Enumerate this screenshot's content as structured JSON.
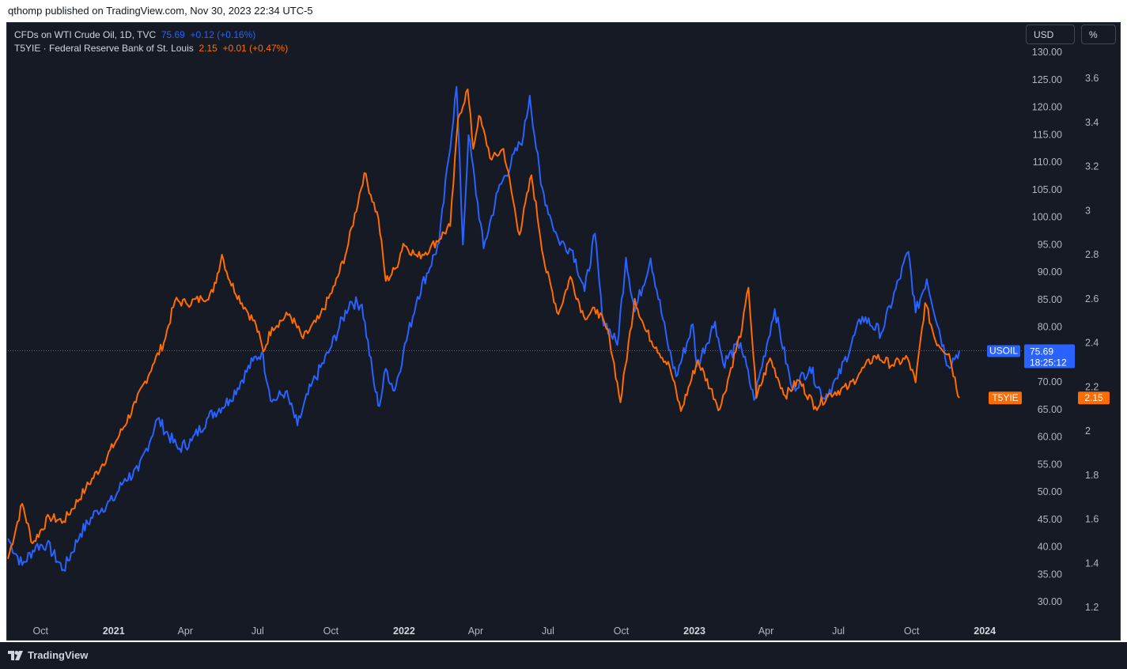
{
  "publisher_line": "qthomp published on TradingView.com, Nov 30, 2023 22:34 UTC-5",
  "brand": "TradingView",
  "buttons": {
    "currency": "USD",
    "percent": "%"
  },
  "legend": [
    {
      "name": "CFDs on WTI Crude Oil, 1D, TVC",
      "value": "75.69",
      "change": "+0.12 (+0.16%)"
    },
    {
      "name": "T5YIE · Federal Reserve Bank of St. Louis",
      "value": "2.15",
      "change": "+0.01 (+0.47%)"
    }
  ],
  "colors": {
    "usoil": "#2962ff",
    "t5yie": "#ff6d00",
    "background": "#161a25",
    "axis_text": "#b2b5be"
  },
  "chart_data": {
    "type": "line",
    "x_labels": [
      "Oct",
      "2021",
      "Apr",
      "Jul",
      "Oct",
      "2022",
      "Apr",
      "Jul",
      "Oct",
      "2023",
      "Apr",
      "Jul",
      "Oct",
      "2024"
    ],
    "x_label_bold": [
      false,
      true,
      false,
      false,
      false,
      true,
      false,
      false,
      false,
      true,
      false,
      false,
      false,
      true
    ],
    "left_axis": {
      "ticks": [
        "130.00",
        "125.00",
        "120.00",
        "115.00",
        "110.00",
        "105.00",
        "100.00",
        "95.00",
        "90.00",
        "85.00",
        "80.00",
        "70.00",
        "65.00",
        "60.00",
        "55.00",
        "50.00",
        "45.00",
        "40.00",
        "35.00",
        "30.00"
      ],
      "ylim": [
        27.5,
        131
      ],
      "unit": "USD"
    },
    "right_axis": {
      "ticks": [
        "3.6",
        "3.4",
        "3.2",
        "3",
        "2.8",
        "2.6",
        "2.4",
        "2.2",
        "2",
        "1.8",
        "1.6",
        "1.4",
        "1.2"
      ],
      "ylim": [
        1.17,
        3.67
      ],
      "unit": "%"
    },
    "series": [
      {
        "name": "USOIL",
        "axis": "left",
        "last_value": "75.69",
        "countdown": "18:25:12",
        "points": [
          [
            "2020-08-21",
            41.5
          ],
          [
            "2020-09-08",
            36.7
          ],
          [
            "2020-09-25",
            40.1
          ],
          [
            "2020-10-09",
            40.5
          ],
          [
            "2020-10-30",
            35.8
          ],
          [
            "2020-11-20",
            42.4
          ],
          [
            "2020-12-11",
            46.6
          ],
          [
            "2020-12-31",
            48.4
          ],
          [
            "2021-01-15",
            52.4
          ],
          [
            "2021-02-01",
            53.8
          ],
          [
            "2021-02-25",
            63.3
          ],
          [
            "2021-03-23",
            57.8
          ],
          [
            "2021-04-09",
            59.3
          ],
          [
            "2021-04-30",
            63.6
          ],
          [
            "2021-05-27",
            66.8
          ],
          [
            "2021-06-25",
            73.8
          ],
          [
            "2021-07-06",
            75.4
          ],
          [
            "2021-07-19",
            66.4
          ],
          [
            "2021-08-05",
            68.2
          ],
          [
            "2021-08-20",
            62.1
          ],
          [
            "2021-09-06",
            69.2
          ],
          [
            "2021-09-28",
            75.3
          ],
          [
            "2021-10-25",
            84.6
          ],
          [
            "2021-11-09",
            84.1
          ],
          [
            "2021-11-26",
            68.2
          ],
          [
            "2021-12-01",
            65.6
          ],
          [
            "2021-12-09",
            72.4
          ],
          [
            "2021-12-20",
            68.4
          ],
          [
            "2021-12-31",
            75.3
          ],
          [
            "2022-01-18",
            85.5
          ],
          [
            "2022-02-14",
            95.3
          ],
          [
            "2022-03-08",
            123.7
          ],
          [
            "2022-03-16",
            95.0
          ],
          [
            "2022-03-23",
            114.9
          ],
          [
            "2022-04-11",
            94.3
          ],
          [
            "2022-04-29",
            104.7
          ],
          [
            "2022-05-31",
            114.7
          ],
          [
            "2022-06-08",
            122.1
          ],
          [
            "2022-06-22",
            105.9
          ],
          [
            "2022-07-05",
            99.5
          ],
          [
            "2022-07-14",
            95.8
          ],
          [
            "2022-08-01",
            93.9
          ],
          [
            "2022-08-16",
            86.5
          ],
          [
            "2022-08-29",
            97.0
          ],
          [
            "2022-09-07",
            81.9
          ],
          [
            "2022-09-26",
            76.7
          ],
          [
            "2022-10-07",
            92.6
          ],
          [
            "2022-10-18",
            82.8
          ],
          [
            "2022-11-07",
            92.5
          ],
          [
            "2022-11-28",
            77.2
          ],
          [
            "2022-12-09",
            71.0
          ],
          [
            "2022-12-30",
            80.5
          ],
          [
            "2023-01-04",
            72.8
          ],
          [
            "2023-01-27",
            81.0
          ],
          [
            "2023-02-06",
            73.4
          ],
          [
            "2023-02-28",
            77.1
          ],
          [
            "2023-03-17",
            66.7
          ],
          [
            "2023-04-12",
            83.3
          ],
          [
            "2023-05-04",
            68.6
          ],
          [
            "2023-05-26",
            72.7
          ],
          [
            "2023-06-12",
            67.1
          ],
          [
            "2023-06-30",
            70.6
          ],
          [
            "2023-07-31",
            81.9
          ],
          [
            "2023-08-24",
            78.9
          ],
          [
            "2023-09-27",
            93.7
          ],
          [
            "2023-10-06",
            82.6
          ],
          [
            "2023-10-20",
            88.7
          ],
          [
            "2023-11-16",
            72.9
          ],
          [
            "2023-11-30",
            75.69
          ]
        ]
      },
      {
        "name": "T5YIE",
        "axis": "right",
        "last_value": "2.15",
        "points": [
          [
            "2020-08-21",
            1.42
          ],
          [
            "2020-09-08",
            1.67
          ],
          [
            "2020-09-21",
            1.49
          ],
          [
            "2020-10-12",
            1.61
          ],
          [
            "2020-10-30",
            1.59
          ],
          [
            "2020-11-27",
            1.74
          ],
          [
            "2020-12-18",
            1.85
          ],
          [
            "2021-01-08",
            1.98
          ],
          [
            "2021-01-29",
            2.13
          ],
          [
            "2021-02-19",
            2.3
          ],
          [
            "2021-03-05",
            2.4
          ],
          [
            "2021-03-19",
            2.59
          ],
          [
            "2021-04-02",
            2.58
          ],
          [
            "2021-04-22",
            2.6
          ],
          [
            "2021-05-06",
            2.63
          ],
          [
            "2021-05-17",
            2.8
          ],
          [
            "2021-05-27",
            2.68
          ],
          [
            "2021-06-15",
            2.56
          ],
          [
            "2021-06-29",
            2.48
          ],
          [
            "2021-07-08",
            2.36
          ],
          [
            "2021-07-19",
            2.47
          ],
          [
            "2021-08-10",
            2.53
          ],
          [
            "2021-08-27",
            2.42
          ],
          [
            "2021-09-16",
            2.51
          ],
          [
            "2021-10-06",
            2.66
          ],
          [
            "2021-10-21",
            2.82
          ],
          [
            "2021-11-12",
            3.17
          ],
          [
            "2021-11-30",
            2.96
          ],
          [
            "2021-12-09",
            2.68
          ],
          [
            "2021-12-22",
            2.74
          ],
          [
            "2021-12-31",
            2.85
          ],
          [
            "2022-01-18",
            2.79
          ],
          [
            "2022-02-03",
            2.83
          ],
          [
            "2022-02-28",
            2.93
          ],
          [
            "2022-03-10",
            3.42
          ],
          [
            "2022-03-22",
            3.55
          ],
          [
            "2022-03-29",
            3.28
          ],
          [
            "2022-04-05",
            3.43
          ],
          [
            "2022-04-21",
            3.23
          ],
          [
            "2022-05-06",
            3.28
          ],
          [
            "2022-05-26",
            2.89
          ],
          [
            "2022-06-10",
            3.16
          ],
          [
            "2022-06-27",
            2.75
          ],
          [
            "2022-07-14",
            2.53
          ],
          [
            "2022-07-29",
            2.7
          ],
          [
            "2022-08-15",
            2.52
          ],
          [
            "2022-09-01",
            2.55
          ],
          [
            "2022-09-16",
            2.43
          ],
          [
            "2022-09-30",
            2.13
          ],
          [
            "2022-10-18",
            2.6
          ],
          [
            "2022-10-31",
            2.46
          ],
          [
            "2022-11-14",
            2.38
          ],
          [
            "2022-12-01",
            2.29
          ],
          [
            "2022-12-15",
            2.09
          ],
          [
            "2023-01-05",
            2.32
          ],
          [
            "2023-02-02",
            2.1
          ],
          [
            "2023-03-02",
            2.47
          ],
          [
            "2023-03-10",
            2.65
          ],
          [
            "2023-03-20",
            2.15
          ],
          [
            "2023-04-06",
            2.33
          ],
          [
            "2023-04-25",
            2.16
          ],
          [
            "2023-05-12",
            2.23
          ],
          [
            "2023-06-02",
            2.11
          ],
          [
            "2023-06-21",
            2.17
          ],
          [
            "2023-07-14",
            2.2
          ],
          [
            "2023-07-27",
            2.26
          ],
          [
            "2023-08-16",
            2.34
          ],
          [
            "2023-09-07",
            2.3
          ],
          [
            "2023-09-26",
            2.33
          ],
          [
            "2023-10-06",
            2.22
          ],
          [
            "2023-10-18",
            2.58
          ],
          [
            "2023-10-31",
            2.41
          ],
          [
            "2023-11-17",
            2.35
          ],
          [
            "2023-11-30",
            2.15
          ]
        ]
      }
    ]
  }
}
